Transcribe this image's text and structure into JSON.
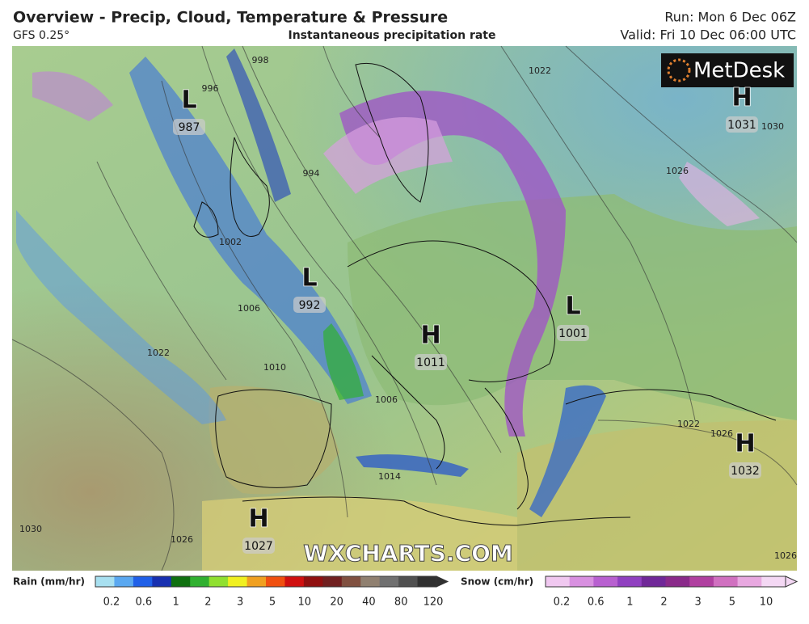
{
  "header": {
    "title": "Overview - Precip, Cloud, Temperature & Pressure",
    "model": "GFS 0.25°",
    "subtitle": "Instantaneous precipitation rate",
    "run": "Run: Mon 6 Dec 06Z",
    "valid": "Valid: Fri 10 Dec 06:00 UTC"
  },
  "logo": "MetDesk",
  "watermark": "WXCHARTS.COM",
  "pressure_centers": [
    {
      "type": "L",
      "value": 987
    },
    {
      "type": "L",
      "value": 992
    },
    {
      "type": "H",
      "value": 1011
    },
    {
      "type": "L",
      "value": 1001
    },
    {
      "type": "H",
      "value": 1031
    },
    {
      "type": "H",
      "value": 1032
    },
    {
      "type": "H",
      "value": 1027
    }
  ],
  "isobar_labels": [
    998,
    996,
    994,
    1002,
    1006,
    1010,
    1022,
    1030,
    1026,
    1014,
    1006,
    1022,
    1026,
    1030,
    1022,
    1026,
    1026
  ],
  "rain_legend": {
    "label": "Rain (mm/hr)",
    "ticks": [
      0.2,
      0.6,
      1,
      2,
      3,
      5,
      10,
      20,
      40,
      80,
      120
    ],
    "colors": [
      "#a8e0f0",
      "#5aa8f0",
      "#2060e8",
      "#1830b0",
      "#107010",
      "#30b030",
      "#90e030",
      "#f0f020",
      "#f0a020",
      "#f05010",
      "#d01010",
      "#901010",
      "#702020",
      "#805040",
      "#908070",
      "#707070",
      "#505050",
      "#303030"
    ]
  },
  "snow_legend": {
    "label": "Snow (cm/hr)",
    "ticks": [
      0.2,
      0.6,
      1,
      2,
      3,
      5,
      10
    ],
    "colors": [
      "#f0c8f0",
      "#d890e0",
      "#b860d0",
      "#9040c0",
      "#702898",
      "#8a2a8a",
      "#b040a0",
      "#d070c0",
      "#e8a8e0",
      "#f4d8f4"
    ]
  }
}
